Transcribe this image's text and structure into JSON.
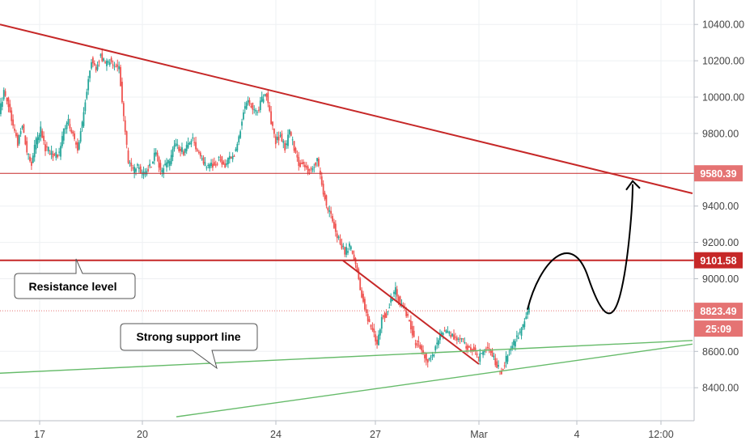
{
  "chart_data": {
    "type": "candlestick",
    "title": "",
    "y_ticks": [
      "10400.00",
      "10200.00",
      "10000.00",
      "9800.00",
      "9580.39",
      "9400.00",
      "9200.00",
      "9101.58",
      "9000.00",
      "8823.49",
      "8600.00",
      "8400.00"
    ],
    "x_ticks": [
      "17",
      "20",
      "24",
      "27",
      "Mar",
      "4",
      "12:00"
    ],
    "ylim": [
      8240,
      10430
    ],
    "grid": true,
    "series_price": [
      9920,
      10020,
      9960,
      9840,
      9740,
      9850,
      9700,
      9640,
      9760,
      9820,
      9720,
      9700,
      9680,
      9690,
      9810,
      9870,
      9780,
      9720,
      9860,
      10040,
      10200,
      10150,
      10240,
      10170,
      10210,
      10160,
      10180,
      9880,
      9640,
      9590,
      9620,
      9570,
      9600,
      9630,
      9700,
      9580,
      9620,
      9650,
      9740,
      9720,
      9700,
      9740,
      9760,
      9690,
      9650,
      9610,
      9620,
      9640,
      9660,
      9620,
      9660,
      9690,
      9780,
      9920,
      9970,
      9940,
      9920,
      9990,
      10010,
      9870,
      9750,
      9790,
      9720,
      9810,
      9720,
      9640,
      9620,
      9600,
      9610,
      9650,
      9520,
      9400,
      9340,
      9260,
      9200,
      9150,
      9180,
      9120,
      9000,
      8870,
      8780,
      8720,
      8640,
      8790,
      8800,
      8880,
      8940,
      8860,
      8840,
      8760,
      8660,
      8640,
      8600,
      8540,
      8580,
      8650,
      8690,
      8710,
      8690,
      8660,
      8660,
      8640,
      8620,
      8610,
      8560,
      8590,
      8620,
      8580,
      8520,
      8490,
      8560,
      8620,
      8660,
      8700,
      8780,
      8840
    ],
    "price_range": {
      "start_label": "17",
      "end_label": "Mar"
    },
    "annotations": [
      {
        "type": "trendline",
        "color": "#c62828",
        "from": {
          "x": "16",
          "y": 10400
        },
        "to": {
          "x": "4.7",
          "y": 9470
        }
      },
      {
        "type": "horizontal_line",
        "color": "#c62828",
        "y": 9580.39
      },
      {
        "type": "horizontal_line",
        "color": "#c62828",
        "y": 9101.58
      },
      {
        "type": "horizontal_line_dotted",
        "color": "#e57373",
        "y": 8823.49
      },
      {
        "type": "trendline",
        "color": "#c62828",
        "from": {
          "x": "26",
          "y": 9100
        },
        "to": {
          "x": "Mar",
          "y": 8530
        }
      },
      {
        "type": "trendline",
        "color": "#66bb6a",
        "from": {
          "x": "16",
          "y": 8480
        },
        "to": {
          "x": "4.9",
          "y": 8660
        }
      },
      {
        "type": "trendline",
        "color": "#66bb6a",
        "from": {
          "x": "21",
          "y": 8240
        },
        "to": {
          "x": "4.9",
          "y": 8640
        }
      },
      {
        "type": "projection_path",
        "color": "#000000",
        "from": {
          "x": "2",
          "y": 8830
        },
        "to": {
          "x": "4.6",
          "y": 9520
        }
      }
    ],
    "price_labels": [
      {
        "text": "9580.39",
        "value": 9580.39,
        "bg": "#e57373",
        "fg": "#ffffff"
      },
      {
        "text": "9101.58",
        "value": 9101.58,
        "bg": "#c62828",
        "fg": "#ffffff"
      },
      {
        "text": "8823.49",
        "value": 8823.49,
        "bg": "#e57373",
        "fg": "#ffffff"
      },
      {
        "text": "25:09",
        "value": 8760,
        "bg": "#e57373",
        "fg": "#ffffff"
      }
    ],
    "callouts": [
      {
        "text": "Resistance level",
        "target": "resistance-line"
      },
      {
        "text": "Strong support line",
        "target": "support-line"
      }
    ]
  },
  "colors": {
    "up": "#26a69a",
    "down": "#ef5350",
    "grid": "#eef0f3",
    "axis_text": "#444444",
    "resistance": "#c62828",
    "support": "#66bb6a"
  }
}
